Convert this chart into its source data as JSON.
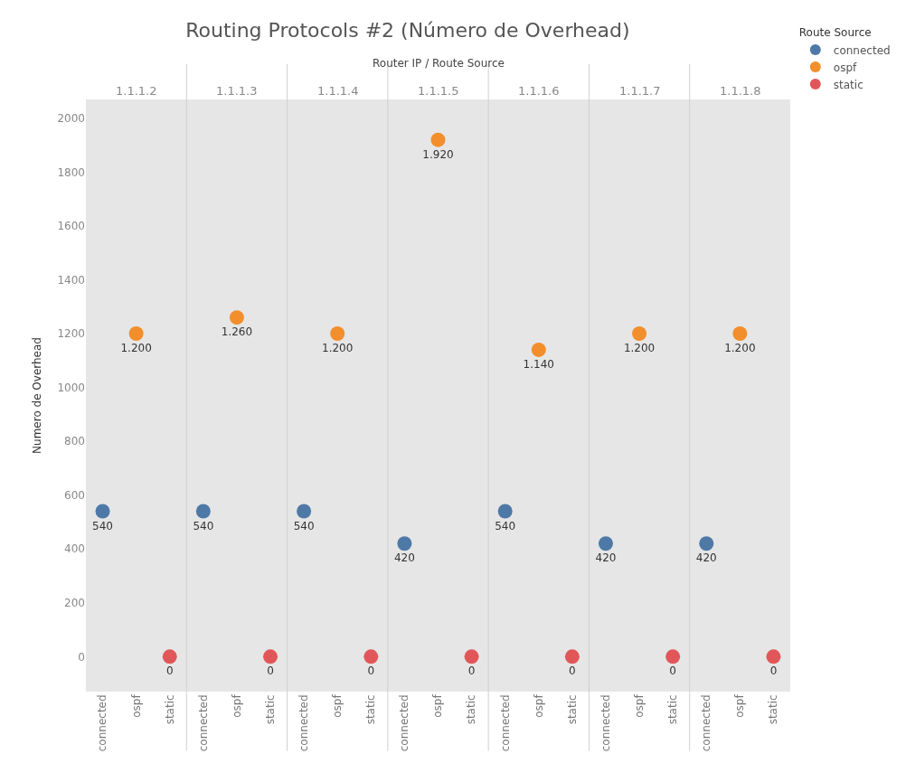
{
  "chart_data": {
    "type": "scatter",
    "title": "Routing Protocols #2 (Número de Overhead)",
    "xlabel": "Router IP / Route Source",
    "ylabel": "Numero de Overhead",
    "legend_title": "Route Source",
    "categories": [
      "connected",
      "ospf",
      "static",
      "connected",
      "ospf",
      "static",
      "connected",
      "ospf",
      "static",
      "connected",
      "ospf",
      "static",
      "connected",
      "ospf",
      "static",
      "connected",
      "ospf",
      "static",
      "connected",
      "ospf",
      "static"
    ],
    "annotations": [
      "1.1.1.2",
      "1.1.1.3",
      "1.1.1.4",
      "1.1.1.5",
      "1.1.1.6",
      "1.1.1.7",
      "1.1.1.8"
    ],
    "series": [
      {
        "name": "connected",
        "color": "#4e79a7",
        "values": [
          540,
          null,
          null,
          540,
          null,
          null,
          540,
          null,
          null,
          420,
          null,
          null,
          540,
          null,
          null,
          420,
          null,
          null,
          420,
          null,
          null
        ],
        "value_labels": [
          "540",
          null,
          null,
          "540",
          null,
          null,
          "540",
          null,
          null,
          "420",
          null,
          null,
          "540",
          null,
          null,
          "420",
          null,
          null,
          "420",
          null,
          null
        ]
      },
      {
        "name": "ospf",
        "color": "#f28e2b",
        "values": [
          null,
          1200,
          null,
          null,
          1260,
          null,
          null,
          1200,
          null,
          null,
          1920,
          null,
          null,
          1140,
          null,
          null,
          1200,
          null,
          null,
          1200,
          null
        ],
        "value_labels": [
          null,
          "1.200",
          null,
          null,
          "1.260",
          null,
          null,
          "1.200",
          null,
          null,
          "1.920",
          null,
          null,
          "1.140",
          null,
          null,
          "1.200",
          null,
          null,
          "1.200",
          null
        ]
      },
      {
        "name": "static",
        "color": "#e15759",
        "values": [
          null,
          null,
          0,
          null,
          null,
          0,
          null,
          null,
          0,
          null,
          null,
          0,
          null,
          null,
          0,
          null,
          null,
          0,
          null,
          null,
          0
        ],
        "value_labels": [
          null,
          null,
          "0",
          null,
          null,
          "0",
          null,
          null,
          "0",
          null,
          null,
          "0",
          null,
          null,
          "0",
          null,
          null,
          "0",
          null,
          null,
          "0"
        ]
      }
    ],
    "ylim": [
      -130,
      2070
    ],
    "yticks": [
      0,
      200,
      400,
      600,
      800,
      1000,
      1200,
      1400,
      1600,
      1800,
      2000
    ],
    "marker": "circle",
    "legend": "top right",
    "grid": false
  }
}
